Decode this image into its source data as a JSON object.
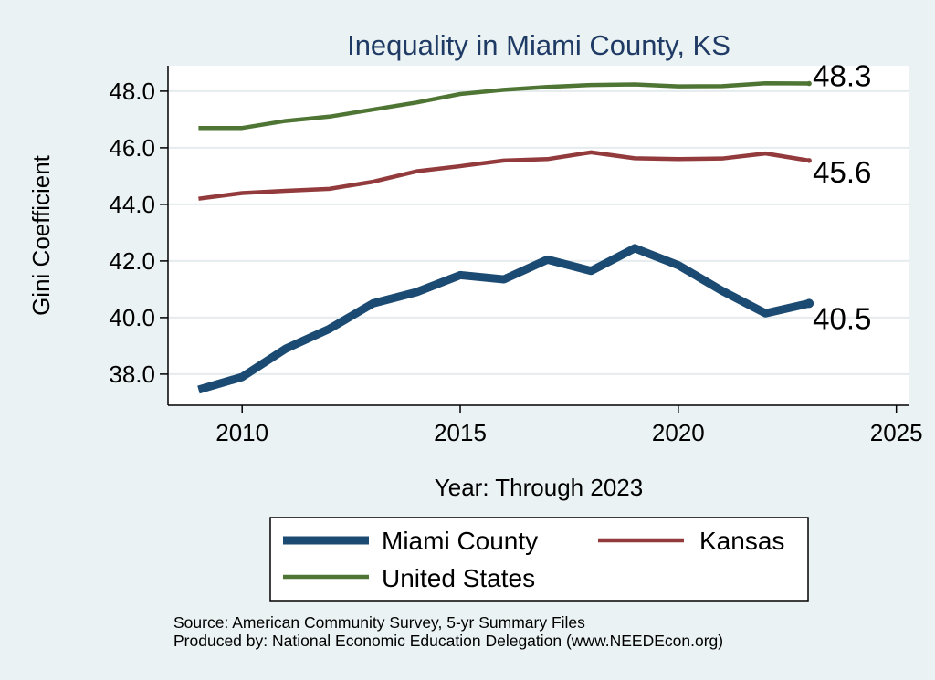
{
  "chart_data": {
    "type": "line",
    "title": "Inequality in Miami County, KS",
    "xlabel": "Year: Through 2023",
    "ylabel": "Gini Coefficient",
    "x": [
      2009,
      2010,
      2011,
      2012,
      2013,
      2014,
      2015,
      2016,
      2017,
      2018,
      2019,
      2020,
      2021,
      2022,
      2023
    ],
    "xlim": [
      2008.3,
      2025.3
    ],
    "ylim": [
      36.9,
      48.9
    ],
    "xticks": [
      "2010",
      "2015",
      "2020",
      "2025"
    ],
    "yticks": [
      "38.0",
      "40.0",
      "42.0",
      "44.0",
      "46.0",
      "48.0"
    ],
    "grid": true,
    "legend_position": "bottom",
    "series": [
      {
        "name": "Miami County",
        "color": "#1b4a72",
        "values": [
          37.45,
          37.9,
          38.9,
          39.6,
          40.5,
          40.9,
          41.5,
          41.35,
          42.05,
          41.65,
          42.45,
          41.85,
          40.95,
          40.15,
          40.5
        ],
        "end_label": "40.5"
      },
      {
        "name": "Kansas",
        "color": "#923a3c",
        "values": [
          44.2,
          44.4,
          44.48,
          44.55,
          44.8,
          45.17,
          45.35,
          45.55,
          45.6,
          45.84,
          45.63,
          45.6,
          45.62,
          45.8,
          45.55
        ],
        "end_label": "45.6"
      },
      {
        "name": "United States",
        "color": "#4e7533",
        "values": [
          46.7,
          46.7,
          46.95,
          47.1,
          47.35,
          47.6,
          47.9,
          48.05,
          48.15,
          48.22,
          48.24,
          48.17,
          48.18,
          48.28,
          48.27
        ],
        "end_label": "48.3"
      }
    ]
  },
  "source_note": "Source: American Community Survey, 5-yr Summary Files",
  "produced_note": "Produced by: National Economic Education Delegation (www.NEEDEcon.org)"
}
